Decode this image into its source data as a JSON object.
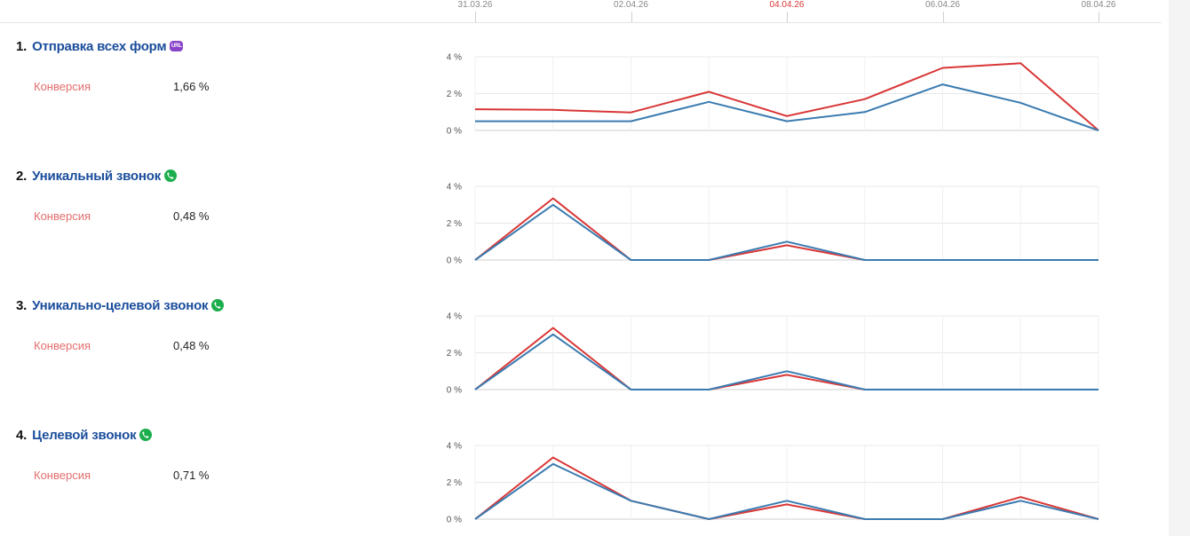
{
  "dates": [
    {
      "label": "31.03.26",
      "x": 0,
      "active": false
    },
    {
      "label": "02.04.26",
      "x": 2,
      "active": false
    },
    {
      "label": "04.04.26",
      "x": 4,
      "active": true
    },
    {
      "label": "06.04.26",
      "x": 6,
      "active": false
    },
    {
      "label": "08.04.26",
      "x": 8,
      "active": false
    }
  ],
  "colors": {
    "series_red": "#d93636",
    "series_blue": "#3a7bb0"
  },
  "goals": [
    {
      "number": "1.",
      "name": "Отправка всех форм",
      "icon": "url-icon",
      "metric_label": "Конверсия",
      "metric_value": "1,66 %"
    },
    {
      "number": "2.",
      "name": "Уникальный звонок",
      "icon": "phone-icon",
      "metric_label": "Конверсия",
      "metric_value": "0,48 %"
    },
    {
      "number": "3.",
      "name": "Уникально-целевой звонок",
      "icon": "phone-icon",
      "metric_label": "Конверсия",
      "metric_value": "0,48 %"
    },
    {
      "number": "4.",
      "name": "Целевой звонок",
      "icon": "phone-icon",
      "metric_label": "Конверсия",
      "metric_value": "0,71 %"
    }
  ],
  "chart_data": [
    {
      "type": "line",
      "x": [
        "31.03.26",
        "01.04.26",
        "02.04.26",
        "03.04.26",
        "04.04.26",
        "05.04.26",
        "06.04.26",
        "07.04.26",
        "08.04.26"
      ],
      "ylim": [
        0,
        4
      ],
      "yticks": [
        "0 %",
        "2 %",
        "4 %"
      ],
      "grid": true,
      "series": [
        {
          "values": [
            1.15,
            1.12,
            0.98,
            2.1,
            0.78,
            1.7,
            3.4,
            3.65,
            0
          ]
        },
        {
          "values": [
            0.5,
            0.5,
            0.5,
            1.55,
            0.5,
            1.0,
            2.5,
            1.5,
            0
          ]
        }
      ]
    },
    {
      "type": "line",
      "x": [
        "31.03.26",
        "01.04.26",
        "02.04.26",
        "03.04.26",
        "04.04.26",
        "05.04.26",
        "06.04.26",
        "07.04.26",
        "08.04.26"
      ],
      "ylim": [
        0,
        4
      ],
      "yticks": [
        "0 %",
        "2 %",
        "4 %"
      ],
      "grid": true,
      "series": [
        {
          "values": [
            0,
            3.35,
            0,
            0,
            0.8,
            0,
            0,
            0,
            0
          ]
        },
        {
          "values": [
            0,
            3.0,
            0,
            0,
            1.0,
            0,
            0,
            0,
            0
          ]
        }
      ]
    },
    {
      "type": "line",
      "x": [
        "31.03.26",
        "01.04.26",
        "02.04.26",
        "03.04.26",
        "04.04.26",
        "05.04.26",
        "06.04.26",
        "07.04.26",
        "08.04.26"
      ],
      "ylim": [
        0,
        4
      ],
      "yticks": [
        "0 %",
        "2 %",
        "4 %"
      ],
      "grid": true,
      "series": [
        {
          "values": [
            0,
            3.35,
            0,
            0,
            0.8,
            0,
            0,
            0,
            0
          ]
        },
        {
          "values": [
            0,
            3.0,
            0,
            0,
            1.0,
            0,
            0,
            0,
            0
          ]
        }
      ]
    },
    {
      "type": "line",
      "x": [
        "31.03.26",
        "01.04.26",
        "02.04.26",
        "03.04.26",
        "04.04.26",
        "05.04.26",
        "06.04.26",
        "07.04.26",
        "08.04.26"
      ],
      "ylim": [
        0,
        4
      ],
      "yticks": [
        "0 %",
        "2 %",
        "4 %"
      ],
      "grid": true,
      "series": [
        {
          "values": [
            0,
            3.35,
            1.0,
            0,
            0.8,
            0,
            0,
            1.2,
            0
          ]
        },
        {
          "values": [
            0,
            3.0,
            1.0,
            0,
            1.0,
            0,
            0,
            1.0,
            0
          ]
        }
      ]
    }
  ]
}
